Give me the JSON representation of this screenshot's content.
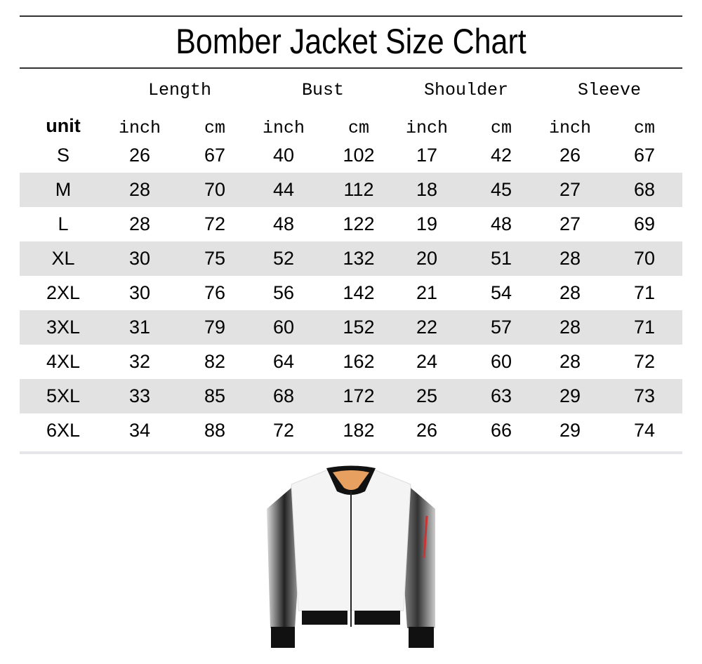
{
  "title": "Bomber Jacket Size Chart",
  "table": {
    "measurements": [
      "Length",
      "Bust",
      "Shoulder",
      "Sleeve"
    ],
    "unit_label": "unit",
    "units": [
      "inch",
      "cm",
      "inch",
      "cm",
      "inch",
      "cm",
      "inch",
      "cm"
    ],
    "rows": [
      {
        "size": "S",
        "values": [
          "26",
          "67",
          "40",
          "102",
          "17",
          "42",
          "26",
          "67"
        ]
      },
      {
        "size": "M",
        "values": [
          "28",
          "70",
          "44",
          "112",
          "18",
          "45",
          "27",
          "68"
        ]
      },
      {
        "size": "L",
        "values": [
          "28",
          "72",
          "48",
          "122",
          "19",
          "48",
          "27",
          "69"
        ]
      },
      {
        "size": "XL",
        "values": [
          "30",
          "75",
          "52",
          "132",
          "20",
          "51",
          "28",
          "70"
        ]
      },
      {
        "size": "2XL",
        "values": [
          "30",
          "76",
          "56",
          "142",
          "21",
          "54",
          "28",
          "71"
        ]
      },
      {
        "size": "3XL",
        "values": [
          "31",
          "79",
          "60",
          "152",
          "22",
          "57",
          "28",
          "71"
        ]
      },
      {
        "size": "4XL",
        "values": [
          "32",
          "82",
          "64",
          "162",
          "24",
          "60",
          "28",
          "72"
        ]
      },
      {
        "size": "5XL",
        "values": [
          "33",
          "85",
          "68",
          "172",
          "25",
          "63",
          "29",
          "73"
        ]
      },
      {
        "size": "6XL",
        "values": [
          "34",
          "88",
          "72",
          "182",
          "26",
          "66",
          "29",
          "74"
        ]
      }
    ],
    "stripe_color": "#e2e2e2"
  },
  "image": {
    "subject": "white bomber jacket",
    "lining_color": "#e8a060"
  }
}
